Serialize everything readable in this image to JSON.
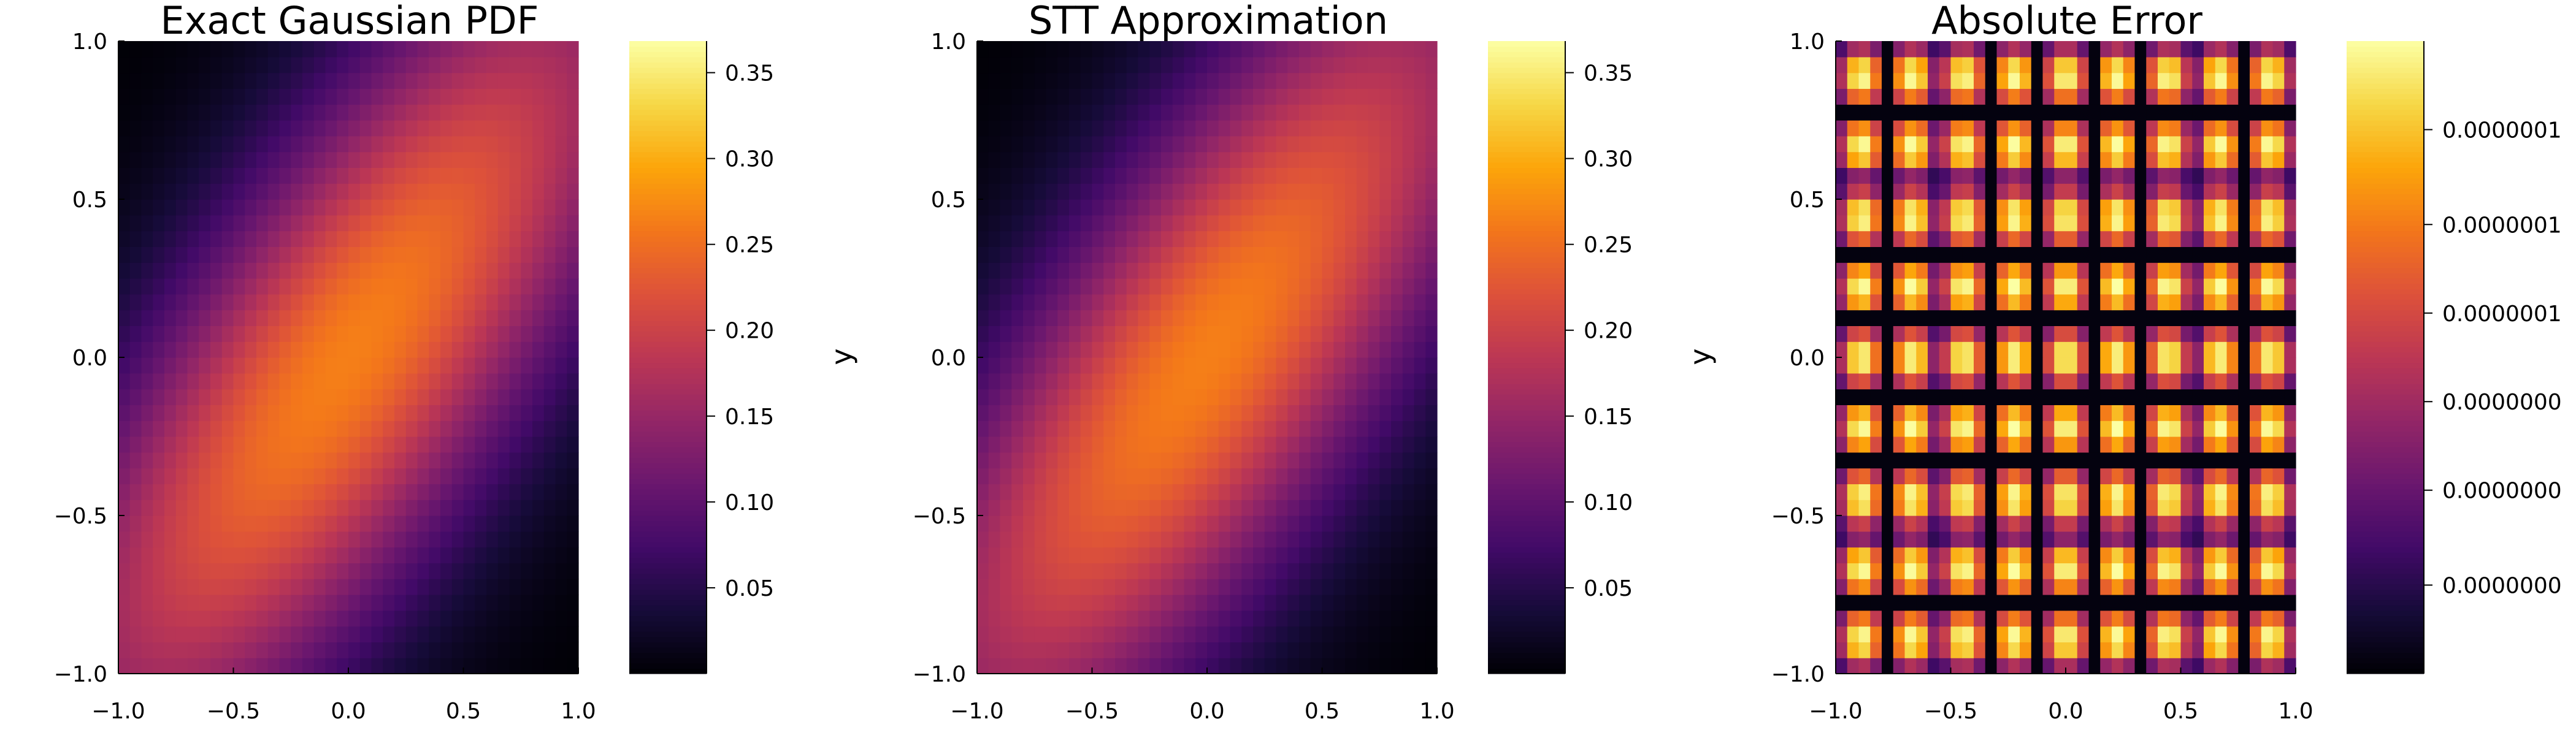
{
  "figure": {
    "layout": "1x3 heatmap panels with colorbars"
  },
  "chart_data": [
    {
      "type": "heatmap",
      "title": "Exact Gaussian PDF",
      "xlabel": "",
      "ylabel": "",
      "x_range": [
        -1.0,
        1.0
      ],
      "y_range": [
        -1.0,
        1.0
      ],
      "xticks": [
        "−1.0",
        "−0.5",
        "0.0",
        "0.5",
        "1.0"
      ],
      "xtick_values": [
        -1.0,
        -0.5,
        0.0,
        0.5,
        1.0
      ],
      "yticks": [
        "−1.0",
        "−0.5",
        "0.0",
        "0.5",
        "1.0"
      ],
      "ytick_values": [
        -1.0,
        -0.5,
        0.0,
        0.5,
        1.0
      ],
      "grid_size": [
        40,
        40
      ],
      "value_model": "bivariate Gaussian density, mean [0,0], variances 1, correlation 0.8",
      "colormap": "inferno",
      "colorbar_range": [
        0.0,
        0.3684
      ],
      "colorbar_ticks": [
        "0.05",
        "0.10",
        "0.15",
        "0.20",
        "0.25",
        "0.30",
        "0.35"
      ],
      "colorbar_tick_values": [
        0.05,
        0.1,
        0.15,
        0.2,
        0.25,
        0.3,
        0.35
      ]
    },
    {
      "type": "heatmap",
      "title": "STT Approximation",
      "xlabel": "",
      "ylabel": "y",
      "x_range": [
        -1.0,
        1.0
      ],
      "y_range": [
        -1.0,
        1.0
      ],
      "xticks": [
        "−1.0",
        "−0.5",
        "0.0",
        "0.5",
        "1.0"
      ],
      "xtick_values": [
        -1.0,
        -0.5,
        0.0,
        0.5,
        1.0
      ],
      "yticks": [
        "−1.0",
        "−0.5",
        "0.0",
        "0.5",
        "1.0"
      ],
      "ytick_values": [
        -1.0,
        -0.5,
        0.0,
        0.5,
        1.0
      ],
      "grid_size": [
        40,
        40
      ],
      "value_model": "bivariate Gaussian density, mean [0,0], variances 1, correlation 0.8",
      "colormap": "inferno",
      "colorbar_range": [
        0.0,
        0.3684
      ],
      "colorbar_ticks": [
        "0.05",
        "0.10",
        "0.15",
        "0.20",
        "0.25",
        "0.30",
        "0.35"
      ],
      "colorbar_tick_values": [
        0.05,
        0.1,
        0.15,
        0.2,
        0.25,
        0.3,
        0.35
      ]
    },
    {
      "type": "heatmap",
      "title": "Absolute Error",
      "xlabel": "",
      "ylabel": "y",
      "x_range": [
        -1.0,
        1.0
      ],
      "y_range": [
        -1.0,
        1.0
      ],
      "xticks": [
        "−1.0",
        "−0.5",
        "0.0",
        "0.5",
        "1.0"
      ],
      "xtick_values": [
        -1.0,
        -0.5,
        0.0,
        0.5,
        1.0
      ],
      "yticks": [
        "−1.0",
        "−0.5",
        "0.0",
        "0.5",
        "1.0"
      ],
      "ytick_values": [
        -1.0,
        -0.5,
        0.0,
        0.5,
        1.0
      ],
      "grid_size": [
        40,
        40
      ],
      "value_model": "periodic grid-aligned error pattern, about 9 blocks per axis, near-zero seams between blocks",
      "colormap": "inferno",
      "colorbar_range": [
        0.0,
        1.0
      ],
      "colorbar_ticks": [
        "0.0000000",
        "0.0000000",
        "0.0000000",
        "0.0000001",
        "0.0000001",
        "0.0000001"
      ],
      "colorbar_tick_values": [
        0.14,
        0.29,
        0.43,
        0.57,
        0.71,
        0.86
      ]
    }
  ]
}
